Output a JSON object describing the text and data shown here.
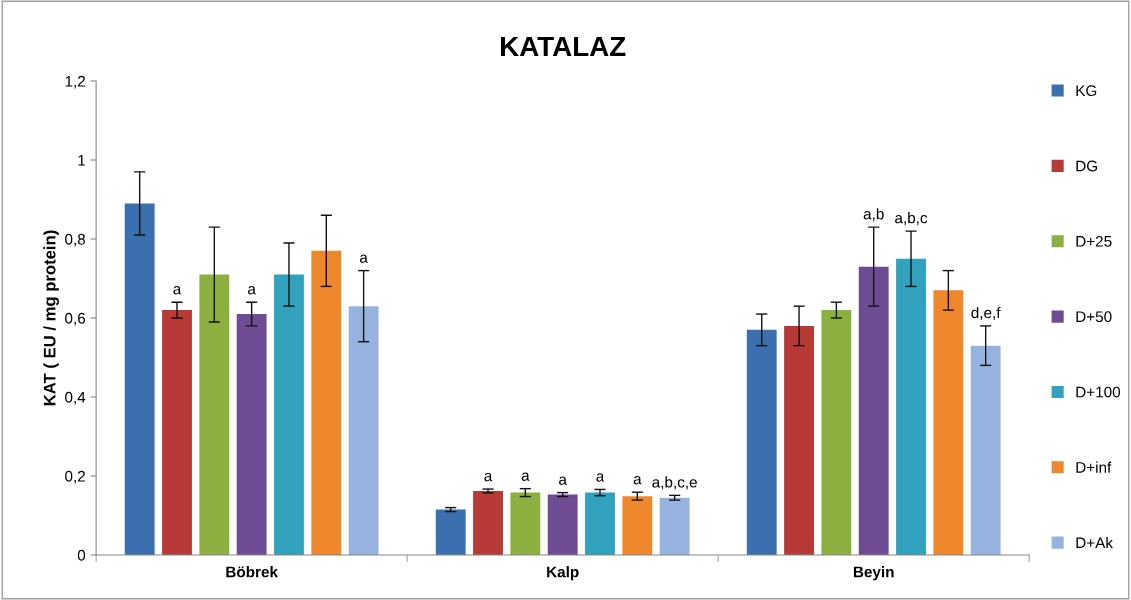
{
  "chart_data": {
    "type": "bar",
    "title": "KATALAZ",
    "ylabel": "KAT ( EU / mg protein)",
    "categories": [
      "Böbrek",
      "Kalp",
      "Beyin"
    ],
    "series": [
      {
        "name": "KG",
        "color": "#3a6fb0",
        "values": [
          0.89,
          0.115,
          0.57
        ],
        "errors": [
          0.08,
          0.005,
          0.04
        ],
        "value_labels": [
          null,
          null,
          null
        ]
      },
      {
        "name": "DG",
        "color": "#b73a36",
        "values": [
          0.62,
          0.162,
          0.58
        ],
        "errors": [
          0.02,
          0.005,
          0.05
        ],
        "value_labels": [
          "a",
          "a",
          null
        ]
      },
      {
        "name": "D+25",
        "color": "#8bb040",
        "values": [
          0.71,
          0.158,
          0.62
        ],
        "errors": [
          0.12,
          0.01,
          0.02
        ],
        "value_labels": [
          null,
          "a",
          null
        ]
      },
      {
        "name": "D+50",
        "color": "#6e4c94",
        "values": [
          0.61,
          0.153,
          0.73
        ],
        "errors": [
          0.03,
          0.005,
          0.1
        ],
        "value_labels": [
          "a",
          "a",
          "a,b"
        ]
      },
      {
        "name": "D+100",
        "color": "#31a1bd",
        "values": [
          0.71,
          0.158,
          0.75
        ],
        "errors": [
          0.08,
          0.008,
          0.07
        ],
        "value_labels": [
          null,
          "a",
          "a,b,c"
        ]
      },
      {
        "name": "D+inf",
        "color": "#ef872c",
        "values": [
          0.77,
          0.149,
          0.67
        ],
        "errors": [
          0.09,
          0.01,
          0.05
        ],
        "value_labels": [
          null,
          "a",
          null
        ]
      },
      {
        "name": "D+Ak",
        "color": "#96b3e0",
        "values": [
          0.63,
          0.145,
          0.53
        ],
        "errors": [
          0.09,
          0.006,
          0.05
        ],
        "value_labels": [
          "a",
          "a,b,c,e",
          "d,e,f"
        ]
      }
    ],
    "ylim": [
      0,
      1.2
    ],
    "yticks": [
      0,
      {
        "value": 0.2,
        "label": "0,2"
      },
      {
        "value": 0.4,
        "label": "0,4"
      },
      {
        "value": 0.6,
        "label": "0,6"
      },
      {
        "value": 0.8,
        "label": "0,8"
      },
      1,
      {
        "value": 1.2,
        "label": "1,2"
      }
    ],
    "grid": false,
    "legend": "right"
  }
}
